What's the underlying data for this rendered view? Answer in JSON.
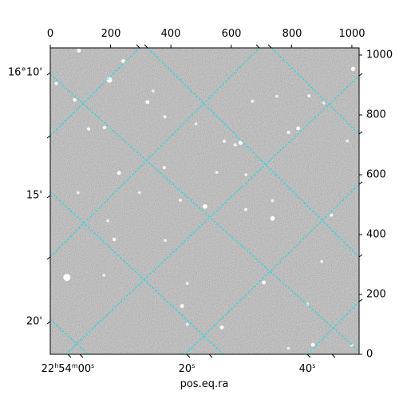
{
  "window": {
    "xlabel": "pos.eq.ra"
  },
  "pixel_axes": {
    "x_range": [
      0,
      1024
    ],
    "y_range": [
      0,
      1024
    ],
    "top_ticks": [
      0,
      200,
      400,
      600,
      800,
      1000
    ],
    "right_ticks": [
      0,
      200,
      400,
      600,
      800,
      1000
    ]
  },
  "world_axes": {
    "ra_ticks": [
      {
        "h": "22",
        "m": "54",
        "s": "00",
        "label_text": "22h54m00s"
      },
      {
        "s": "20",
        "label_text": "20s"
      },
      {
        "s": "40",
        "label_text": "40s"
      }
    ],
    "dec_ticks": [
      {
        "label_text": "16°10'"
      },
      {
        "label_text": "15'"
      },
      {
        "label_text": "20'"
      }
    ]
  },
  "colors": {
    "grid": "#00e5e5",
    "sky_background": "#808080",
    "frame": "#000000"
  },
  "chart_data": {
    "type": "image",
    "title": "",
    "xlabel": "pos.eq.ra",
    "ylabel": "",
    "xlim": [
      0,
      1024
    ],
    "ylim": [
      0,
      1024
    ],
    "grid": true,
    "grid_style": "dashed",
    "stars": [
      {
        "x": 95,
        "y": 1015,
        "b": 1.0
      },
      {
        "x": 242,
        "y": 980,
        "b": 1.0
      },
      {
        "x": 20,
        "y": 905,
        "b": 0.8
      },
      {
        "x": 196,
        "y": 917,
        "b": 1.6
      },
      {
        "x": 81,
        "y": 850,
        "b": 0.9
      },
      {
        "x": 322,
        "y": 843,
        "b": 1.0
      },
      {
        "x": 380,
        "y": 794,
        "b": 0.7
      },
      {
        "x": 127,
        "y": 753,
        "b": 0.8
      },
      {
        "x": 180,
        "y": 758,
        "b": 0.8
      },
      {
        "x": 483,
        "y": 770,
        "b": 0.6
      },
      {
        "x": 670,
        "y": 846,
        "b": 0.7
      },
      {
        "x": 751,
        "y": 862,
        "b": 0.6
      },
      {
        "x": 858,
        "y": 864,
        "b": 0.7
      },
      {
        "x": 790,
        "y": 742,
        "b": 0.8
      },
      {
        "x": 822,
        "y": 755,
        "b": 1.0
      },
      {
        "x": 1004,
        "y": 954,
        "b": 1.1
      },
      {
        "x": 907,
        "y": 840,
        "b": 0.6
      },
      {
        "x": 577,
        "y": 712,
        "b": 0.7
      },
      {
        "x": 613,
        "y": 700,
        "b": 0.7
      },
      {
        "x": 631,
        "y": 707,
        "b": 1.1
      },
      {
        "x": 228,
        "y": 606,
        "b": 1.0
      },
      {
        "x": 378,
        "y": 624,
        "b": 0.8
      },
      {
        "x": 552,
        "y": 608,
        "b": 0.6
      },
      {
        "x": 649,
        "y": 600,
        "b": 0.6
      },
      {
        "x": 985,
        "y": 713,
        "b": 0.6
      },
      {
        "x": 431,
        "y": 515,
        "b": 0.7
      },
      {
        "x": 513,
        "y": 494,
        "b": 1.2
      },
      {
        "x": 648,
        "y": 484,
        "b": 0.7
      },
      {
        "x": 737,
        "y": 513,
        "b": 0.6
      },
      {
        "x": 737,
        "y": 454,
        "b": 1.2
      },
      {
        "x": 191,
        "y": 446,
        "b": 0.6
      },
      {
        "x": 212,
        "y": 384,
        "b": 0.9
      },
      {
        "x": 381,
        "y": 380,
        "b": 0.6
      },
      {
        "x": 932,
        "y": 465,
        "b": 0.7
      },
      {
        "x": 900,
        "y": 310,
        "b": 0.6
      },
      {
        "x": 55,
        "y": 257,
        "b": 2.2
      },
      {
        "x": 178,
        "y": 264,
        "b": 0.6
      },
      {
        "x": 454,
        "y": 237,
        "b": 0.6
      },
      {
        "x": 708,
        "y": 240,
        "b": 1.0
      },
      {
        "x": 437,
        "y": 161,
        "b": 1.0
      },
      {
        "x": 569,
        "y": 90,
        "b": 1.0
      },
      {
        "x": 454,
        "y": 100,
        "b": 0.6
      },
      {
        "x": 853,
        "y": 168,
        "b": 0.6
      },
      {
        "x": 871,
        "y": 32,
        "b": 1.0
      },
      {
        "x": 790,
        "y": 20,
        "b": 0.6
      },
      {
        "x": 1000,
        "y": 30,
        "b": 0.6
      },
      {
        "x": 341,
        "y": 880,
        "b": 0.6
      },
      {
        "x": 296,
        "y": 540,
        "b": 0.6
      },
      {
        "x": 92,
        "y": 540,
        "b": 0.6
      }
    ]
  }
}
